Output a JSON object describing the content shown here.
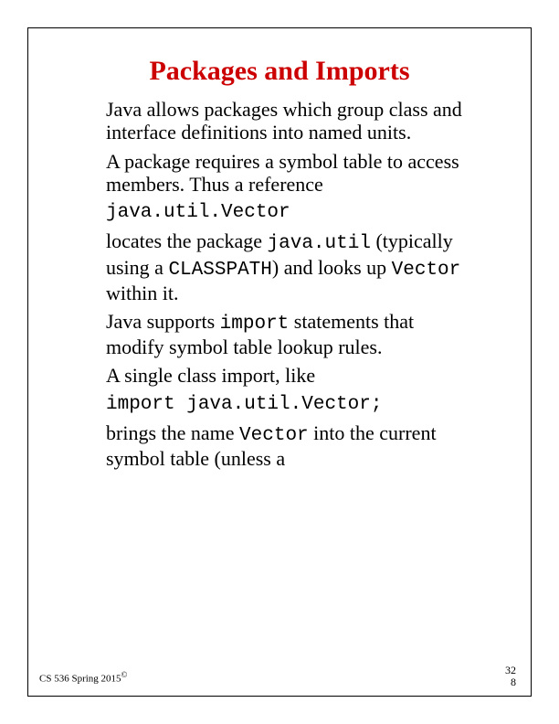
{
  "title": "Packages and Imports",
  "para1": "Java allows packages which group class and interface definitions into named units.",
  "para2": "A package requires a symbol table to access members. Thus a reference",
  "codeline1": "java.util.Vector",
  "para3_a": "locates the package ",
  "para3_code1": "java.util",
  "para3_b": " (typically using a ",
  "para3_code2": "CLASSPATH",
  "para3_c": ") and looks up ",
  "para3_code3": "Vector",
  "para3_d": " within it.",
  "para4_a": "Java supports ",
  "para4_code1": "import",
  "para4_b": " statements that modify symbol table lookup rules.",
  "para5": "A single class import, like",
  "codeline2": "import java.util.Vector;",
  "para6_a": "brings the name ",
  "para6_code1": "Vector",
  "para6_b": " into the current symbol table (unless a",
  "footer_left": "CS 536  Spring 2015",
  "footer_copyright": "©",
  "footer_right_1": "32",
  "footer_right_2": "8"
}
